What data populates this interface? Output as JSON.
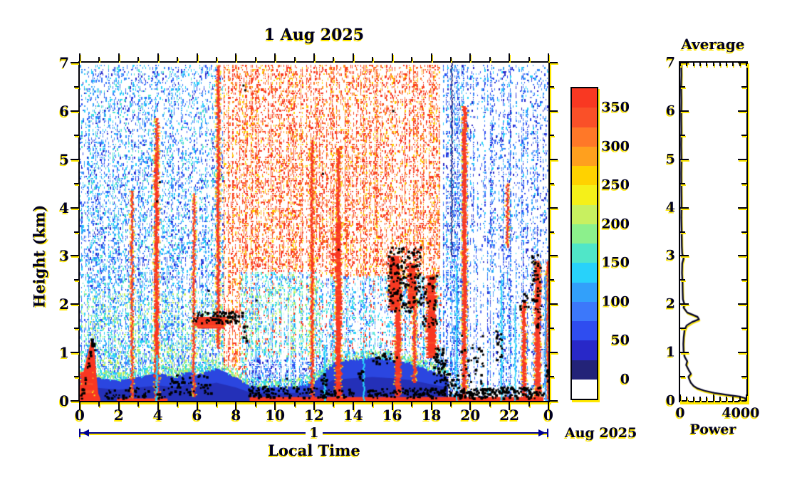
{
  "page": {
    "background": "#ffffff",
    "ink": "#000020",
    "shadow": "#ffe800",
    "annotation_line": "#000090"
  },
  "main_plot": {
    "title": "1 Aug 2025",
    "xlabel": "Local Time",
    "ylabel": "Height (km)",
    "x_tick_labels": [
      "0",
      "2",
      "4",
      "6",
      "8",
      "10",
      "12",
      "14",
      "16",
      "18",
      "20",
      "22",
      "0"
    ],
    "y_tick_labels": [
      "0",
      "1",
      "2",
      "3",
      "4",
      "5",
      "6",
      "7"
    ],
    "day_axis": {
      "label": "1",
      "month_label": "Aug 2025"
    }
  },
  "colorbar": {
    "tick_values": [
      0,
      50,
      100,
      150,
      200,
      250,
      300,
      350
    ],
    "tick_labels": [
      "0",
      "50",
      "100",
      "150",
      "200",
      "250",
      "300",
      "350"
    ],
    "range": [
      -25,
      375
    ],
    "colors": [
      "#ffffff",
      "#232378",
      "#2828c8",
      "#2f4df0",
      "#3c78fa",
      "#32a0fa",
      "#28d2fa",
      "#50e6c8",
      "#8cf08c",
      "#c8f060",
      "#f5f019",
      "#ffd200",
      "#ffa01e",
      "#ff7828",
      "#fa5028",
      "#f93822"
    ]
  },
  "avg_plot": {
    "title": "Average",
    "xlabel": "Power",
    "x_tick_labels": [
      "0",
      "4000"
    ],
    "y_tick_labels": [
      "0",
      "1",
      "2",
      "3",
      "4",
      "5",
      "6",
      "7"
    ]
  },
  "chart_data": [
    {
      "type": "heatmap",
      "title": "1 Aug 2025",
      "xlabel": "Local Time",
      "ylabel": "Height (km)",
      "xlim": [
        0,
        24
      ],
      "ylim": [
        0,
        7
      ],
      "x_ticks": [
        0,
        2,
        4,
        6,
        8,
        10,
        12,
        14,
        16,
        18,
        20,
        22,
        24
      ],
      "y_ticks": [
        0,
        1,
        2,
        3,
        4,
        5,
        6,
        7
      ],
      "colorbar_levels": [
        0,
        50,
        100,
        150,
        200,
        250,
        300,
        350
      ],
      "value_range": [
        -25,
        375
      ],
      "render": {
        "noise": [
          {
            "t": [
              0,
              7.6
            ],
            "k": [
              0,
              7
            ],
            "d": [
              0.6,
              0.35
            ],
            "c": [
              3,
              4,
              4,
              5,
              5,
              6,
              6,
              2,
              7
            ]
          },
          {
            "t": [
              0,
              8.6
            ],
            "k": [
              0,
              2.3
            ],
            "d": [
              0.85,
              0.55
            ],
            "c": [
              4,
              5,
              5,
              6,
              6,
              7,
              8,
              9,
              3
            ]
          },
          {
            "t": [
              7.3,
              18.4
            ],
            "k": [
              0,
              7
            ],
            "d": [
              0.6,
              0.48
            ],
            "c": [
              15,
              15,
              15,
              14,
              14,
              13,
              12,
              11
            ]
          },
          {
            "t": [
              8.2,
              12.3
            ],
            "k": [
              0,
              2.7
            ],
            "d": [
              0.72,
              0.5
            ],
            "c": [
              5,
              6,
              6,
              7,
              8,
              9,
              4,
              15
            ]
          },
          {
            "t": [
              12.3,
              18.5
            ],
            "k": [
              0,
              2.6
            ],
            "d": [
              0.55,
              0.45
            ],
            "c": [
              5,
              6,
              4,
              6,
              7,
              3,
              15
            ]
          },
          {
            "t": [
              8.6,
              18.6
            ],
            "k": [
              0,
              0.9
            ],
            "d": [
              0.8,
              0.6
            ],
            "c": [
              3,
              4,
              5,
              2,
              6
            ]
          },
          {
            "t": [
              18.6,
              24
            ],
            "k": [
              0,
              7
            ],
            "d": [
              0.52,
              0.38
            ],
            "c": [
              4,
              4,
              5,
              3,
              3,
              6,
              2,
              5
            ]
          }
        ],
        "gaps": [
          [
            10.4,
            0.12,
            0.3,
            2.3
          ],
          [
            10.75,
            0.1,
            0.3,
            2.0
          ],
          [
            11.15,
            0.12,
            0.3,
            2.2
          ],
          [
            14.2,
            0.1,
            0.9,
            2.4
          ],
          [
            15.2,
            0.12,
            1.0,
            2.6
          ],
          [
            12.75,
            0.1,
            0.15,
            1.2
          ],
          [
            20.1,
            0.14,
            0,
            3.2
          ],
          [
            20.45,
            0.12,
            0,
            3.0
          ],
          [
            20.78,
            0.14,
            0,
            3.3
          ],
          [
            21.1,
            0.12,
            0,
            2.6
          ],
          [
            20.3,
            0.1,
            3.2,
            6.5
          ],
          [
            20.9,
            0.1,
            3.5,
            6.0
          ]
        ],
        "bl_edge": [
          [
            0,
            0.55
          ],
          [
            1,
            0.48
          ],
          [
            2,
            0.42
          ],
          [
            3,
            0.5
          ],
          [
            4,
            0.58
          ],
          [
            5,
            0.5
          ],
          [
            5.5,
            0.62
          ],
          [
            6,
            0.55
          ],
          [
            7,
            0.68
          ],
          [
            8,
            0.5
          ],
          [
            8.7,
            0.32
          ],
          [
            10,
            0.28
          ],
          [
            11,
            0.3
          ],
          [
            12,
            0.38
          ],
          [
            12.6,
            0.65
          ],
          [
            13,
            0.8
          ],
          [
            14,
            0.85
          ],
          [
            15,
            0.9
          ],
          [
            16,
            0.85
          ],
          [
            17,
            0.78
          ],
          [
            18,
            0.62
          ],
          [
            18.85,
            0.5
          ]
        ],
        "wedge": [
          [
            0,
            0
          ],
          [
            0,
            0.3
          ],
          [
            0.3,
            0.78
          ],
          [
            0.55,
            1.2
          ],
          [
            0.63,
            1.3
          ],
          [
            0.75,
            1.05
          ],
          [
            0.85,
            0.55
          ],
          [
            0.95,
            0.15
          ],
          [
            1.05,
            0.05
          ],
          [
            1.05,
            0
          ]
        ],
        "features": [
          [
            2.68,
            0.1,
            0.05,
            4.35
          ],
          [
            3.93,
            0.2,
            0.05,
            5.15
          ],
          [
            3.95,
            0.14,
            5.15,
            5.85
          ],
          [
            5.85,
            0.1,
            0.1,
            4.3
          ],
          [
            7.1,
            0.15,
            1.1,
            6.95
          ],
          [
            11.9,
            0.13,
            0.05,
            5.4
          ],
          [
            13.25,
            0.28,
            0.05,
            3.7
          ],
          [
            13.25,
            0.16,
            3.7,
            5.2
          ],
          [
            16.3,
            0.28,
            0.1,
            2.75
          ],
          [
            17.15,
            0.14,
            0.4,
            2.5
          ],
          [
            16.1,
            0.5,
            1.9,
            3.0
          ],
          [
            17.0,
            0.4,
            1.95,
            2.85
          ],
          [
            18.0,
            0.45,
            0.9,
            2.6
          ],
          [
            19.7,
            0.2,
            0.05,
            6.1
          ],
          [
            22.75,
            0.18,
            0.05,
            2.05
          ],
          [
            23.45,
            0.28,
            0.05,
            2.9
          ],
          [
            23.95,
            0.1,
            0.05,
            2.9
          ],
          [
            21.9,
            0.1,
            3.2,
            4.5
          ],
          [
            6.7,
            1.6,
            1.52,
            1.74
          ],
          [
            0.35,
            0.7,
            0.05,
            0.6
          ]
        ],
        "strips": [
          [
            1.9,
            4.5,
            0,
            0.05
          ],
          [
            8.7,
            23.75,
            0,
            0.08
          ]
        ],
        "columns": [
          [
            3.95,
            0.1,
            0,
            0.95,
            6
          ],
          [
            12.55,
            0.1,
            0,
            1.15,
            6
          ],
          [
            14.55,
            0.08,
            0,
            0.95,
            6
          ],
          [
            19.3,
            0.07,
            0,
            2.8,
            6
          ],
          [
            21.6,
            0.08,
            0,
            2.5,
            6
          ],
          [
            22.3,
            0.06,
            0,
            2.0,
            6
          ],
          [
            23.85,
            0.08,
            0,
            2.6,
            5
          ],
          [
            19.05,
            0.05,
            3,
            7,
            1
          ]
        ],
        "cloud_boxes": [
          [
            1.2,
            4.4,
            0.07,
            0.3,
            45
          ],
          [
            4.5,
            6.7,
            0.15,
            0.55,
            55
          ],
          [
            5.75,
            8.3,
            1.62,
            1.86,
            80
          ],
          [
            8.3,
            8.55,
            1.25,
            1.62,
            10
          ],
          [
            8.6,
            12.1,
            0.08,
            0.32,
            90
          ],
          [
            12.1,
            14.1,
            0.08,
            0.26,
            50
          ],
          [
            12.3,
            12.6,
            0.35,
            0.58,
            12
          ],
          [
            14.2,
            14.5,
            0.45,
            0.66,
            9
          ],
          [
            14.6,
            18.6,
            0.07,
            0.28,
            110
          ],
          [
            14.9,
            16.25,
            0.78,
            1.02,
            18
          ],
          [
            15.75,
            17.45,
            1.85,
            3.2,
            170
          ],
          [
            17.45,
            18.25,
            1.55,
            2.65,
            45
          ],
          [
            18.05,
            18.7,
            0.4,
            1.15,
            45
          ],
          [
            18.6,
            19.4,
            0.08,
            0.6,
            45
          ],
          [
            19.4,
            23.75,
            0.07,
            0.3,
            190
          ],
          [
            19.45,
            20.65,
            0.35,
            1.4,
            32
          ],
          [
            21.25,
            21.6,
            0.85,
            1.5,
            20
          ],
          [
            22.5,
            22.95,
            1.85,
            2.25,
            12
          ],
          [
            23.1,
            23.55,
            2.05,
            3.05,
            34
          ],
          [
            23.3,
            23.65,
            1.4,
            2.0,
            14
          ],
          [
            23.8,
            24,
            0.4,
            0.8,
            10
          ]
        ],
        "cloud_path": {
          "pts": [
            [
              0.03,
              0.1
            ],
            [
              0.2,
              0.35
            ],
            [
              0.35,
              0.65
            ],
            [
              0.5,
              0.95
            ],
            [
              0.62,
              1.22
            ],
            [
              0.72,
              1.12
            ],
            [
              0.55,
              1.3
            ]
          ],
          "n": 34,
          "jit": 0.09
        },
        "cloud_singles": [
          [
            3.9,
            4.15
          ],
          [
            4.05,
            4.55
          ],
          [
            8.33,
            6.55
          ],
          [
            8.42,
            6.45
          ],
          [
            13.2,
            3.15
          ],
          [
            10.55,
            0.48
          ],
          [
            12.4,
            4.72
          ],
          [
            16.0,
            6.02
          ],
          [
            9.0,
            2.1
          ],
          [
            6.55,
            2.3
          ]
        ]
      }
    },
    {
      "type": "line",
      "title": "Average",
      "xlabel": "Power",
      "xlim": [
        0,
        4000
      ],
      "ylim": [
        0,
        7
      ],
      "x_ticks": [
        0,
        4000
      ],
      "y_ticks": [
        0,
        1,
        2,
        3,
        4,
        5,
        6,
        7
      ],
      "points": [
        [
          60,
          7
        ],
        [
          75,
          6.75
        ],
        [
          55,
          6.5
        ],
        [
          70,
          6.2
        ],
        [
          60,
          5.9
        ],
        [
          72,
          5.6
        ],
        [
          58,
          5.3
        ],
        [
          74,
          5.0
        ],
        [
          62,
          4.7
        ],
        [
          70,
          4.4
        ],
        [
          82,
          4.1
        ],
        [
          68,
          3.8
        ],
        [
          88,
          3.5
        ],
        [
          100,
          3.2
        ],
        [
          120,
          3.05
        ],
        [
          210,
          2.95
        ],
        [
          125,
          2.85
        ],
        [
          110,
          2.65
        ],
        [
          140,
          2.45
        ],
        [
          150,
          2.25
        ],
        [
          165,
          2.1
        ],
        [
          260,
          2.0
        ],
        [
          205,
          1.93
        ],
        [
          430,
          1.83
        ],
        [
          1060,
          1.74
        ],
        [
          1150,
          1.69
        ],
        [
          720,
          1.63
        ],
        [
          390,
          1.56
        ],
        [
          265,
          1.46
        ],
        [
          215,
          1.32
        ],
        [
          192,
          1.18
        ],
        [
          205,
          1.04
        ],
        [
          262,
          0.92
        ],
        [
          430,
          0.82
        ],
        [
          365,
          0.74
        ],
        [
          520,
          0.64
        ],
        [
          660,
          0.56
        ],
        [
          505,
          0.5
        ],
        [
          565,
          0.44
        ],
        [
          645,
          0.38
        ],
        [
          820,
          0.31
        ],
        [
          1050,
          0.26
        ],
        [
          1500,
          0.21
        ],
        [
          2100,
          0.165
        ],
        [
          2900,
          0.125
        ],
        [
          3700,
          0.085
        ],
        [
          4000,
          0.055
        ],
        [
          4000,
          0.015
        ]
      ]
    }
  ]
}
